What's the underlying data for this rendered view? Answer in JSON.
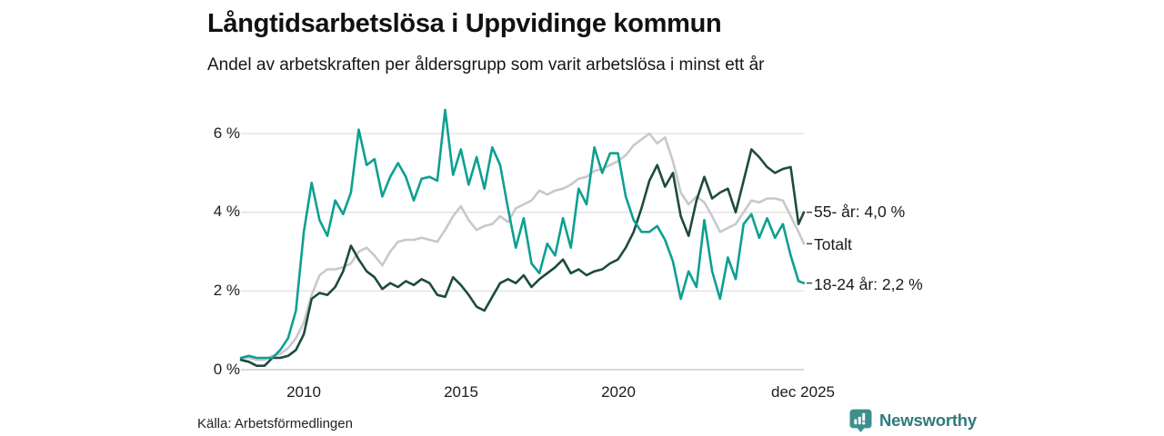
{
  "header": {
    "title": "Långtidsarbetslösa i Uppvidinge kommun",
    "subtitle": "Andel av arbetskraften per åldersgrupp som varit arbetslösa i minst ett år"
  },
  "footer": {
    "source": "Källa: Arbetsförmedlingen",
    "brand": "Newsworthy",
    "brand_icon": "newsworthy-speech-bubble-bar-chart-icon"
  },
  "colors": {
    "teal": "#0da092",
    "dark_green": "#1e4b3d",
    "gray": "#c8c8cd",
    "grid": "#e0e0e0",
    "axis": "#c2c2c2",
    "leader_dash": "#4a4a4a",
    "brand": "#2e7b7c",
    "brand_icon_fill": "#3d8f8e"
  },
  "chart_data": {
    "type": "line",
    "title": "Långtidsarbetslösa i Uppvidinge kommun",
    "subtitle": "Andel av arbetskraften per åldersgrupp som varit arbetslösa i minst ett år",
    "grid": "horizontal",
    "legend_position": "right-end-labels",
    "xlim": [
      2008,
      2025.92
    ],
    "ylim": [
      0,
      6.8
    ],
    "y_unit": "%",
    "y_ticks": [
      {
        "label": "6 %",
        "value": 6
      },
      {
        "label": "4 %",
        "value": 4
      },
      {
        "label": "2 %",
        "value": 2
      },
      {
        "label": "0 %",
        "value": 0
      }
    ],
    "x_ticks": [
      {
        "label": "2010",
        "x": 2010
      },
      {
        "label": "2015",
        "x": 2015
      },
      {
        "label": "2020",
        "x": 2020
      },
      {
        "label": "dec 2025",
        "x": 2025.92
      }
    ],
    "x": [
      2008,
      2008.25,
      2008.5,
      2008.75,
      2009,
      2009.25,
      2009.5,
      2009.75,
      2010,
      2010.25,
      2010.5,
      2010.75,
      2011,
      2011.25,
      2011.5,
      2011.75,
      2012,
      2012.25,
      2012.5,
      2012.75,
      2013,
      2013.25,
      2013.5,
      2013.75,
      2014,
      2014.25,
      2014.5,
      2014.75,
      2015,
      2015.25,
      2015.5,
      2015.75,
      2016,
      2016.25,
      2016.5,
      2016.75,
      2017,
      2017.25,
      2017.5,
      2017.75,
      2018,
      2018.25,
      2018.5,
      2018.75,
      2019,
      2019.25,
      2019.5,
      2019.75,
      2020,
      2020.25,
      2020.5,
      2020.75,
      2021,
      2021.25,
      2021.5,
      2021.75,
      2022,
      2022.25,
      2022.5,
      2022.75,
      2023,
      2023.25,
      2023.5,
      2023.75,
      2024,
      2024.25,
      2024.5,
      2024.75,
      2025,
      2025.25,
      2025.5,
      2025.75,
      2025.92
    ],
    "series": [
      {
        "name": "55- år",
        "slug": "55-ar",
        "end_label": "55- år: 4,0 %",
        "end_value_label": "4,0 %",
        "color": "#1e4b3d",
        "values": [
          0.25,
          0.2,
          0.1,
          0.1,
          0.3,
          0.3,
          0.35,
          0.5,
          0.9,
          1.8,
          1.95,
          1.9,
          2.1,
          2.5,
          3.15,
          2.8,
          2.5,
          2.35,
          2.05,
          2.2,
          2.1,
          2.25,
          2.15,
          2.3,
          2.2,
          1.9,
          1.85,
          2.35,
          2.15,
          1.9,
          1.6,
          1.5,
          1.85,
          2.2,
          2.3,
          2.2,
          2.4,
          2.1,
          2.3,
          2.45,
          2.6,
          2.8,
          2.45,
          2.55,
          2.4,
          2.5,
          2.55,
          2.7,
          2.8,
          3.1,
          3.5,
          4.1,
          4.8,
          5.2,
          4.65,
          5.0,
          3.9,
          3.4,
          4.3,
          4.9,
          4.35,
          4.5,
          4.6,
          4.0,
          4.8,
          5.6,
          5.4,
          5.15,
          5.0,
          5.1,
          5.15,
          3.7,
          4.0
        ]
      },
      {
        "name": "Totalt",
        "slug": "totalt",
        "end_label": "Totalt",
        "end_value_label": "",
        "color": "#c8c8cd",
        "values": [
          0.3,
          0.3,
          0.25,
          0.25,
          0.35,
          0.4,
          0.55,
          0.8,
          1.2,
          1.9,
          2.4,
          2.55,
          2.55,
          2.6,
          2.7,
          3.0,
          3.1,
          2.9,
          2.65,
          3.0,
          3.25,
          3.3,
          3.3,
          3.35,
          3.3,
          3.25,
          3.55,
          3.9,
          4.15,
          3.8,
          3.55,
          3.65,
          3.7,
          3.9,
          3.75,
          4.1,
          4.2,
          4.3,
          4.55,
          4.45,
          4.55,
          4.6,
          4.7,
          4.85,
          4.9,
          5.05,
          5.1,
          5.2,
          5.3,
          5.45,
          5.7,
          5.85,
          6.0,
          5.75,
          5.9,
          5.3,
          4.5,
          4.2,
          4.4,
          4.25,
          3.9,
          3.5,
          3.6,
          3.7,
          4.0,
          4.3,
          4.25,
          4.35,
          4.35,
          4.3,
          3.9,
          3.5,
          3.2
        ]
      },
      {
        "name": "18-24 år",
        "slug": "18-24-ar",
        "end_label": "18-24 år: 2,2 %",
        "end_value_label": "2,2 %",
        "color": "#0da092",
        "values": [
          0.3,
          0.35,
          0.3,
          0.3,
          0.3,
          0.5,
          0.8,
          1.5,
          3.5,
          4.75,
          3.8,
          3.4,
          4.3,
          3.95,
          4.5,
          6.1,
          5.2,
          5.35,
          4.4,
          4.9,
          5.25,
          4.9,
          4.3,
          4.85,
          4.9,
          4.8,
          6.6,
          4.95,
          5.6,
          4.7,
          5.4,
          4.6,
          5.65,
          5.2,
          4.1,
          3.1,
          3.85,
          2.7,
          2.45,
          3.2,
          2.9,
          3.85,
          3.1,
          4.6,
          4.2,
          5.65,
          5.0,
          5.5,
          5.5,
          4.4,
          3.8,
          3.5,
          3.5,
          3.65,
          3.3,
          2.75,
          1.8,
          2.5,
          2.1,
          3.8,
          2.5,
          1.8,
          2.85,
          2.3,
          3.7,
          3.95,
          3.35,
          3.85,
          3.35,
          3.7,
          2.9,
          2.25,
          2.2
        ]
      }
    ]
  }
}
